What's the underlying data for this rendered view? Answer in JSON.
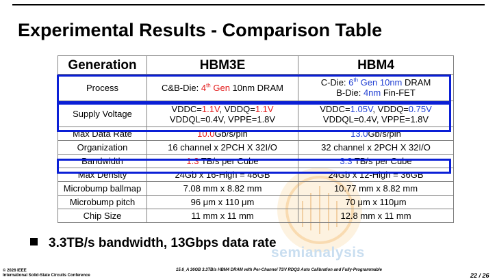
{
  "title": "Experimental Results - Comparison Table",
  "table": {
    "headers": [
      "Generation",
      "HBM3E",
      "HBM4"
    ],
    "rows": [
      {
        "label": "Process",
        "hbm3e": {
          "p1": "C&B-Die: ",
          "gen": "4",
          "sup": "th",
          "gen2": " Gen",
          "p2": " 10nm DRAM"
        },
        "hbm4": {
          "l1a": "C-Die: ",
          "gen": "6",
          "sup": "th",
          "gen2": " Gen 10nm",
          "l1b": " DRAM",
          "l2a": "B-Die: ",
          "l2hl": "4nm",
          "l2b": " Fin-FET"
        }
      },
      {
        "label": "Supply Voltage",
        "hbm3e": {
          "l1a": "VDDC=",
          "v1": "1.1V",
          "l1b": ", VDDQ=",
          "v2": "1.1V",
          "l2": "VDDQL=0.4V, VPPE=1.8V"
        },
        "hbm4": {
          "l1a": "VDDC=",
          "v1": "1.05V",
          "l1b": ", VDDQ=",
          "v2": "0.75V",
          "l2": "VDDQL=0.4V, VPPE=1.8V"
        }
      },
      {
        "label": "Max Data Rate",
        "hbm3e": {
          "hl": "10.0",
          "rest": "Gb/s/pin"
        },
        "hbm4": {
          "hl": "13.0",
          "rest": "Gb/s/pin"
        }
      },
      {
        "label": "Organization",
        "hbm3e": "16 channel x 2PCH X 32I/O",
        "hbm4": "32 channel x 2PCH X 32I/O"
      },
      {
        "label": "Bandwidth",
        "hbm3e": {
          "hl": "1.3",
          "rest": " TB/s per Cube"
        },
        "hbm4": {
          "hl": "3.3",
          "rest": " TB/s per Cube"
        }
      },
      {
        "label": "Max Density",
        "hbm3e": "24Gb x 16-High = 48GB",
        "hbm4": "24Gb x 12-High = 36GB"
      },
      {
        "label": "Microbump ballmap",
        "hbm3e": "7.08 mm x 8.82 mm",
        "hbm4": "10.77 mm x 8.82 mm"
      },
      {
        "label": "Microbump pitch",
        "hbm3e": "96 μm x 110 μm",
        "hbm4": "70 μm x 110μm"
      },
      {
        "label": "Chip Size",
        "hbm3e": "11 mm x 11 mm",
        "hbm4": "12.8 mm x 11 mm"
      }
    ]
  },
  "bullet": "3.3TB/s bandwidth, 13Gbps data rate",
  "watermark": "semianalysis",
  "footer": {
    "left_line1": "© 2026 IEEE",
    "left_line2": "International Solid-State Circuits Conference",
    "center": "15.6_A 36GB 3.3TB/s HBM4 DRAM with Per-Channel TSV RDQS Auto Calibration and Fully-Programmable",
    "page": "22 / 26"
  },
  "colors": {
    "red": "#e31a1a",
    "blue": "#1f3ed2",
    "highlight_border": "#0a1fd6"
  }
}
